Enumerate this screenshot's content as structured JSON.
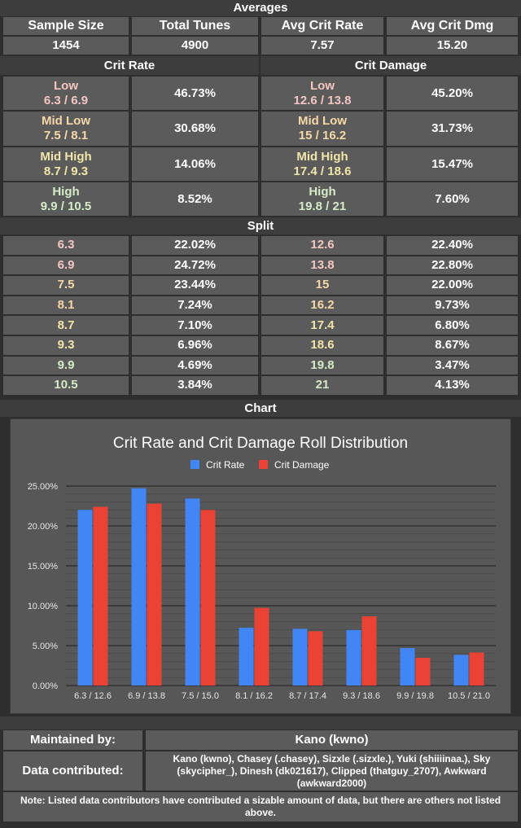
{
  "headers": {
    "averages": "Averages",
    "crit_rate": "Crit Rate",
    "crit_damage": "Crit Damage",
    "split": "Split",
    "chart": "Chart"
  },
  "averages": {
    "columns": [
      "Sample Size",
      "Total Tunes",
      "Avg Crit Rate",
      "Avg Crit Dmg"
    ],
    "values": [
      "1454",
      "4900",
      "7.57",
      "15.20"
    ]
  },
  "tiers": {
    "crit_rate": [
      {
        "name": "Low",
        "range": "6.3 / 6.9",
        "pct": "46.73%"
      },
      {
        "name": "Mid Low",
        "range": "7.5 / 8.1",
        "pct": "30.68%"
      },
      {
        "name": "Mid High",
        "range": "8.7 / 9.3",
        "pct": "14.06%"
      },
      {
        "name": "High",
        "range": "9.9 / 10.5",
        "pct": "8.52%"
      }
    ],
    "crit_damage": [
      {
        "name": "Low",
        "range": "12.6 / 13.8",
        "pct": "45.20%"
      },
      {
        "name": "Mid Low",
        "range": "15 / 16.2",
        "pct": "31.73%"
      },
      {
        "name": "Mid High",
        "range": "17.4 / 18.6",
        "pct": "15.47%"
      },
      {
        "name": "High",
        "range": "19.8 / 21",
        "pct": "7.60%"
      }
    ]
  },
  "split": [
    {
      "cr": "6.3",
      "cr_pct": "22.02%",
      "cd": "12.6",
      "cd_pct": "22.40%"
    },
    {
      "cr": "6.9",
      "cr_pct": "24.72%",
      "cd": "13.8",
      "cd_pct": "22.80%"
    },
    {
      "cr": "7.5",
      "cr_pct": "23.44%",
      "cd": "15",
      "cd_pct": "22.00%"
    },
    {
      "cr": "8.1",
      "cr_pct": "7.24%",
      "cd": "16.2",
      "cd_pct": "9.73%"
    },
    {
      "cr": "8.7",
      "cr_pct": "7.10%",
      "cd": "17.4",
      "cd_pct": "6.80%"
    },
    {
      "cr": "9.3",
      "cr_pct": "6.96%",
      "cd": "18.6",
      "cd_pct": "8.67%"
    },
    {
      "cr": "9.9",
      "cr_pct": "4.69%",
      "cd": "19.8",
      "cd_pct": "3.47%"
    },
    {
      "cr": "10.5",
      "cr_pct": "3.84%",
      "cd": "21",
      "cd_pct": "4.13%"
    }
  ],
  "chart_data": {
    "type": "bar",
    "title": "Crit Rate and Crit Damage Roll Distribution",
    "categories": [
      "6.3 / 12.6",
      "6.9 / 13.8",
      "7.5 / 15.0",
      "8.1 / 16.2",
      "8.7 / 17.4",
      "9.3 / 18.6",
      "9.9 / 19.8",
      "10.5 / 21.0"
    ],
    "series": [
      {
        "name": "Crit Rate",
        "color": "#4285f4",
        "values": [
          22.02,
          24.72,
          23.44,
          7.24,
          7.1,
          6.96,
          4.69,
          3.84
        ]
      },
      {
        "name": "Crit Damage",
        "color": "#ea4335",
        "values": [
          22.4,
          22.8,
          22.0,
          9.73,
          6.8,
          8.67,
          3.47,
          4.13
        ]
      }
    ],
    "ylim": [
      0,
      25
    ],
    "yticks": [
      "0.00%",
      "5.00%",
      "10.00%",
      "15.00%",
      "20.00%",
      "25.00%"
    ],
    "legend": "top",
    "grid": true
  },
  "footer": {
    "maintained_label": "Maintained by:",
    "maintained_value": "Kano (kwno)",
    "contributed_label": "Data contributed:",
    "contributed_value": "Kano (kwno), Chasey (.chasey), Sizxle (.sizxle.), Yuki (shiiiinaa.), Sky (skycipher_), Dinesh (dk021617), Clipped (thatguy_2707), Awkward (awkward2000)",
    "note": "Note: Listed data contributors have contributed a sizable amount of data, but there are others not listed above."
  }
}
